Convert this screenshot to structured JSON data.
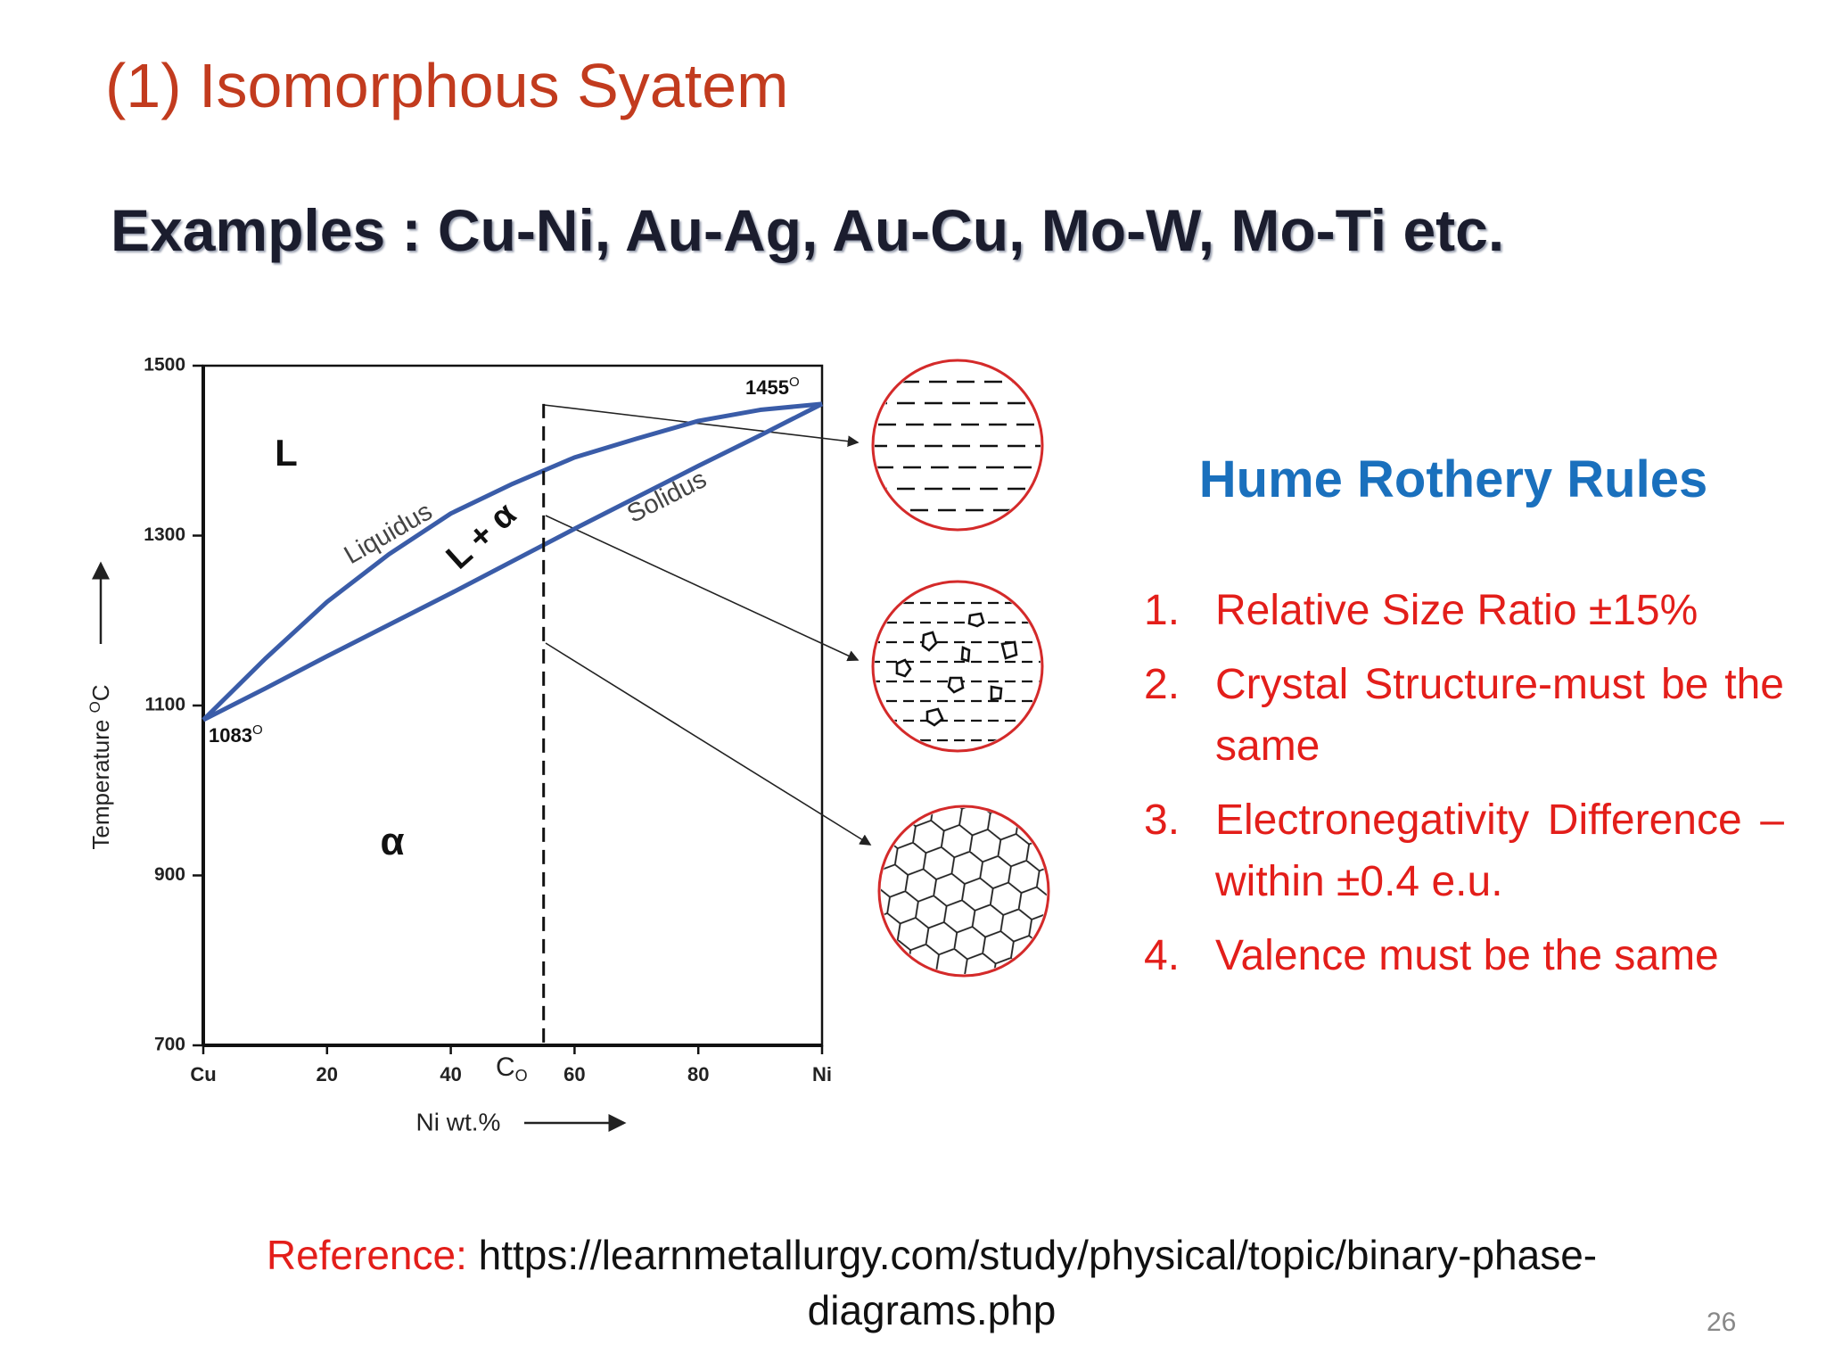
{
  "title": "(1) Isomorphous Syatem",
  "subtitle": "Examples : Cu-Ni, Au-Ag, Au-Cu, Mo-W, Mo-Ti etc.",
  "chart_data": {
    "type": "line",
    "x_label": "Ni wt.%",
    "y_label": "Temperature ",
    "y_label_sup": "O",
    "y_label_unit": "C",
    "x": [
      0,
      10,
      20,
      30,
      40,
      50,
      60,
      70,
      80,
      90,
      100
    ],
    "series": [
      {
        "name": "Liquidus",
        "color": "#3a5ca8",
        "values": [
          1083,
          1155,
          1222,
          1278,
          1326,
          1361,
          1392,
          1414,
          1435,
          1448,
          1455
        ]
      },
      {
        "name": "Solidus",
        "color": "#3a5ca8",
        "values": [
          1083,
          1120,
          1158,
          1195,
          1232,
          1270,
          1308,
          1345,
          1382,
          1418,
          1455
        ]
      }
    ],
    "xlim": [
      0,
      100
    ],
    "xticks": [
      {
        "value": 0,
        "label": "Cu"
      },
      20,
      40,
      60,
      80,
      {
        "value": 100,
        "label": "Ni"
      }
    ],
    "ylim": [
      700,
      1500
    ],
    "yticks": [
      700,
      900,
      1100,
      1300,
      1500
    ],
    "region_labels": [
      "L",
      "L + α",
      "α"
    ],
    "point_labels": [
      {
        "text": "1083",
        "sup": "O"
      },
      {
        "text": "1455",
        "sup": "O"
      }
    ],
    "composition": {
      "label": "C",
      "sub": "O",
      "value": 55
    }
  },
  "rules_title": "Hume Rothery Rules",
  "rules": [
    {
      "num": "1.",
      "text": "Relative Size Ratio ±15%"
    },
    {
      "num": "2.",
      "text": "Crystal Structure-must be the same"
    },
    {
      "num": "3.",
      "text": "Electronegativity Difference –within ±0.4 e.u."
    },
    {
      "num": "4.",
      "text": "Valence must be the same"
    }
  ],
  "reference": {
    "label": "Reference:",
    "url": "https://learnmetallurgy.com/study/physical/topic/binary-phase-diagrams.php"
  },
  "page_number": "26"
}
